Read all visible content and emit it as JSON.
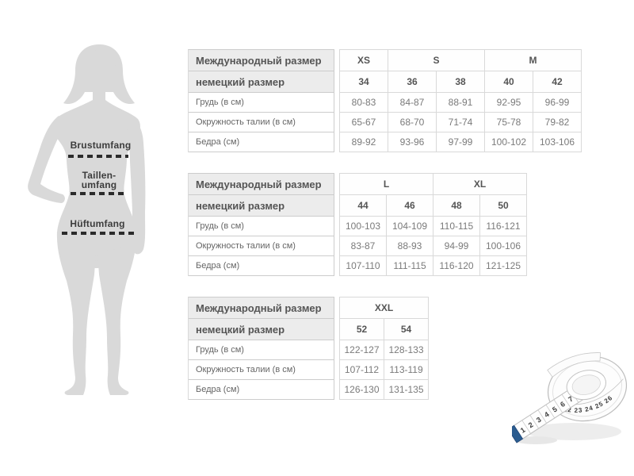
{
  "figure": {
    "bust_label": "Brustumfang",
    "waist_label_line1": "Taillen-",
    "waist_label_line2": "umfang",
    "hip_label": "Hüftumfang"
  },
  "table_common": {
    "intl_size_label": "Международный размер",
    "german_size_label": "немецкий размер",
    "row_labels": [
      "Грудь (в см)",
      "Окружность талии (в см)",
      "Бедра (см)"
    ]
  },
  "tables": [
    {
      "size_groups": [
        {
          "label": "XS",
          "span": 1
        },
        {
          "label": "S",
          "span": 2
        },
        {
          "label": "M",
          "span": 2
        }
      ],
      "german_sizes": [
        "34",
        "36",
        "38",
        "40",
        "42"
      ],
      "measurements": [
        [
          "80-83",
          "84-87",
          "88-91",
          "92-95",
          "96-99"
        ],
        [
          "65-67",
          "68-70",
          "71-74",
          "75-78",
          "79-82"
        ],
        [
          "89-92",
          "93-96",
          "97-99",
          "100-102",
          "103-106"
        ]
      ]
    },
    {
      "size_groups": [
        {
          "label": "L",
          "span": 2
        },
        {
          "label": "XL",
          "span": 2
        }
      ],
      "german_sizes": [
        "44",
        "46",
        "48",
        "50"
      ],
      "measurements": [
        [
          "100-103",
          "104-109",
          "110-115",
          "116-121"
        ],
        [
          "83-87",
          "88-93",
          "94-99",
          "100-106"
        ],
        [
          "107-110",
          "111-115",
          "116-120",
          "121-125"
        ]
      ]
    },
    {
      "size_groups": [
        {
          "label": "XXL",
          "span": 2
        }
      ],
      "german_sizes": [
        "52",
        "54"
      ],
      "measurements": [
        [
          "122-127",
          "128-133"
        ],
        [
          "107-112",
          "113-119"
        ],
        [
          "126-130",
          "131-135"
        ]
      ]
    }
  ],
  "tape": {
    "strip_numbers": [
      "1",
      "2",
      "3",
      "4",
      "5",
      "6",
      "7",
      "8"
    ],
    "coil_numbers": "22 23 24 25 26",
    "tip_color": "#2b5c8f"
  },
  "colors": {
    "table_border": "#cccccc",
    "table_border_inner": "#d9d9d9",
    "header_bg": "#ececec",
    "header_text": "#555555",
    "label_text": "#666666",
    "value_text": "#7a7a7a",
    "dash_line": "#2b2b2b",
    "silhouette": "#d9d9d9"
  }
}
